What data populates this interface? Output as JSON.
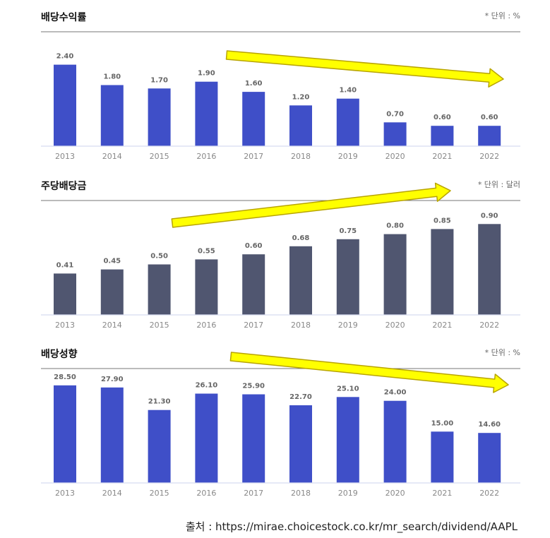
{
  "source_label": "출처 : https://mirae.choicestock.co.kr/mr_search/dividend/AAPL",
  "colors": {
    "primary_bar": "#3f4fc8",
    "secondary_bar": "#505670",
    "arrow_fill": "#ffff00",
    "arrow_stroke": "#b8a400",
    "axis_line": "#d8dcf0",
    "header_line": "#777777",
    "value_text": "#666666",
    "tick_text": "#888888"
  },
  "chart_data": [
    {
      "type": "bar",
      "title": "배당수익률",
      "unit_label": "* 단위 : %",
      "categories": [
        "2013",
        "2014",
        "2015",
        "2016",
        "2017",
        "2018",
        "2019",
        "2020",
        "2021",
        "2022"
      ],
      "values": [
        2.4,
        1.8,
        1.7,
        1.9,
        1.6,
        1.2,
        1.4,
        0.7,
        0.6,
        0.6
      ],
      "value_labels": [
        "2.40",
        "1.80",
        "1.70",
        "1.90",
        "1.60",
        "1.20",
        "1.40",
        "0.70",
        "0.60",
        "0.60"
      ],
      "ylim": [
        0,
        2.6
      ],
      "grid": false,
      "trend_arrow": "down"
    },
    {
      "type": "bar",
      "title": "주당배당금",
      "unit_label": "* 단위 : 달러",
      "categories": [
        "2013",
        "2014",
        "2015",
        "2016",
        "2017",
        "2018",
        "2019",
        "2020",
        "2021",
        "2022"
      ],
      "values": [
        0.41,
        0.45,
        0.5,
        0.55,
        0.6,
        0.68,
        0.75,
        0.8,
        0.85,
        0.9
      ],
      "value_labels": [
        "0.41",
        "0.45",
        "0.50",
        "0.55",
        "0.60",
        "0.68",
        "0.75",
        "0.80",
        "0.85",
        "0.90"
      ],
      "ylim": [
        0,
        1.0
      ],
      "grid": false,
      "trend_arrow": "up"
    },
    {
      "type": "bar",
      "title": "배당성향",
      "unit_label": "* 단위 : %",
      "categories": [
        "2013",
        "2014",
        "2015",
        "2016",
        "2017",
        "2018",
        "2019",
        "2020",
        "2021",
        "2022"
      ],
      "values": [
        28.5,
        27.9,
        21.3,
        26.1,
        25.9,
        22.7,
        25.1,
        24.0,
        15.0,
        14.6
      ],
      "value_labels": [
        "28.50",
        "27.90",
        "21.30",
        "26.10",
        "25.90",
        "22.70",
        "25.10",
        "24.00",
        "15.00",
        "14.60"
      ],
      "ylim": [
        0,
        29.5
      ],
      "grid": false,
      "trend_arrow": "down"
    }
  ]
}
